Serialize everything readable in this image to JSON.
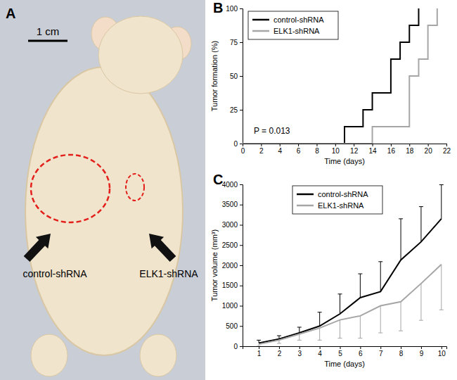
{
  "figure": {
    "panel_labels": [
      "A",
      "B",
      "C"
    ],
    "photo": {
      "scale_bar": "1 cm",
      "labels": [
        "control-shRNA",
        "ELK1-shRNA"
      ]
    }
  },
  "chart_data": [
    {
      "type": "line",
      "x_label": "Time (days)",
      "y_label": "Tumor formation (%)",
      "annotation": "P = 0.013",
      "xlim": [
        0,
        22
      ],
      "xticks": [
        0,
        2,
        4,
        6,
        8,
        10,
        12,
        14,
        16,
        18,
        20,
        22
      ],
      "ylim": [
        0,
        100
      ],
      "yticks": [
        0,
        25,
        50,
        75,
        100
      ],
      "legend": "top-left",
      "grid": false,
      "series": [
        {
          "name": "control-shRNA",
          "color": "#000000",
          "line_style": "step",
          "x": [
            0,
            11,
            13,
            14,
            16,
            17,
            18,
            19
          ],
          "values": [
            0,
            12.5,
            25,
            37.5,
            62.5,
            75,
            87.5,
            100
          ]
        },
        {
          "name": "ELK1-shRNA",
          "color": "#a6a6a6",
          "line_style": "step",
          "x": [
            0,
            14,
            18,
            19,
            20,
            21
          ],
          "values": [
            0,
            12.5,
            50,
            62.5,
            87.5,
            100
          ]
        }
      ]
    },
    {
      "type": "line",
      "x_label": "Time (days)",
      "y_label": "Tumor volume (mm³)",
      "xlim": [
        0.2,
        10.25
      ],
      "xticks": [
        1,
        2,
        3,
        4,
        5,
        6,
        7,
        8,
        9,
        10
      ],
      "ylim": [
        0,
        4000
      ],
      "yticks": [
        0,
        500,
        1000,
        1500,
        2000,
        2500,
        3000,
        3500,
        4000
      ],
      "legend": "top",
      "grid": false,
      "series": [
        {
          "name": "control-shRNA",
          "color": "#000000",
          "line_style": "solid",
          "x": [
            1,
            2,
            3,
            4,
            5,
            6,
            7,
            8,
            9,
            10
          ],
          "values": [
            80,
            180,
            330,
            500,
            800,
            1200,
            1350,
            2130,
            2580,
            3150
          ],
          "error_upper": [
            70,
            80,
            140,
            340,
            490,
            590,
            740,
            1020,
            870,
            840
          ]
        },
        {
          "name": "ELK1-shRNA",
          "color": "#a6a6a6",
          "line_style": "solid",
          "x": [
            1,
            2,
            3,
            4,
            5,
            6,
            7,
            8,
            9,
            10
          ],
          "values": [
            50,
            150,
            300,
            450,
            650,
            750,
            1000,
            1100,
            1550,
            2020
          ],
          "error_lower": [
            50,
            80,
            150,
            300,
            450,
            550,
            670,
            720,
            910,
            1120
          ]
        }
      ]
    }
  ]
}
